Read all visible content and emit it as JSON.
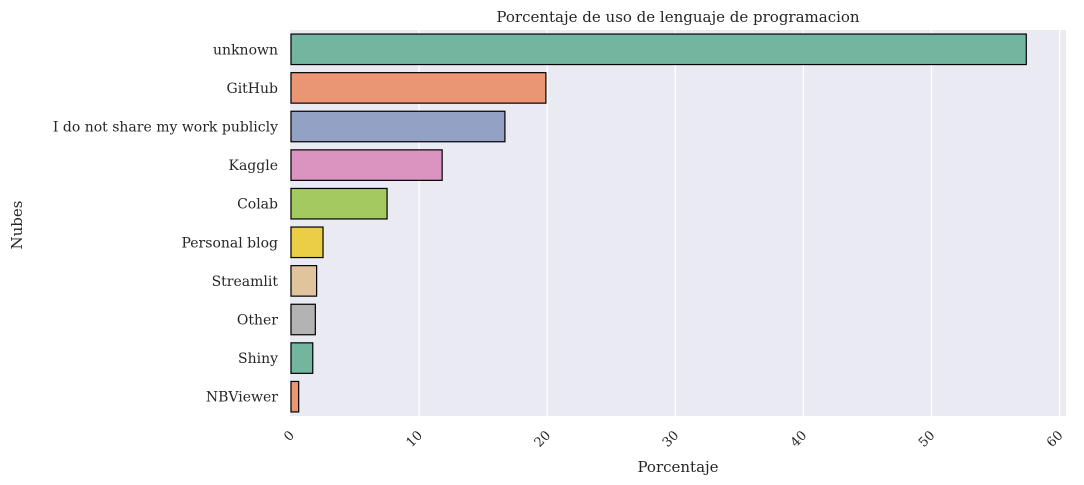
{
  "chart_data": {
    "type": "bar",
    "orientation": "horizontal",
    "title": "Porcentaje de uso de lenguaje de programacion",
    "xlabel": "Porcentaje",
    "ylabel": "Nubes",
    "categories": [
      "unknown",
      "GitHub",
      "I do not share my work publicly",
      "Kaggle",
      "Colab",
      "Personal blog",
      "Streamlit",
      "Other",
      "Shiny",
      "NBViewer"
    ],
    "values": [
      57.4,
      19.9,
      16.7,
      11.8,
      7.5,
      2.5,
      2.0,
      1.9,
      1.7,
      0.6
    ],
    "colors": [
      "#73b6a0",
      "#eb9672",
      "#93a1c4",
      "#db93c0",
      "#a3c960",
      "#ebcd46",
      "#dfc49c",
      "#b3b3b3",
      "#73b6a0",
      "#eb9672"
    ],
    "xlim": [
      0,
      60.5
    ],
    "xticks": [
      0,
      10,
      20,
      30,
      40,
      50,
      60
    ],
    "grid": true,
    "background": "#eaeaf2",
    "legend": "none"
  }
}
